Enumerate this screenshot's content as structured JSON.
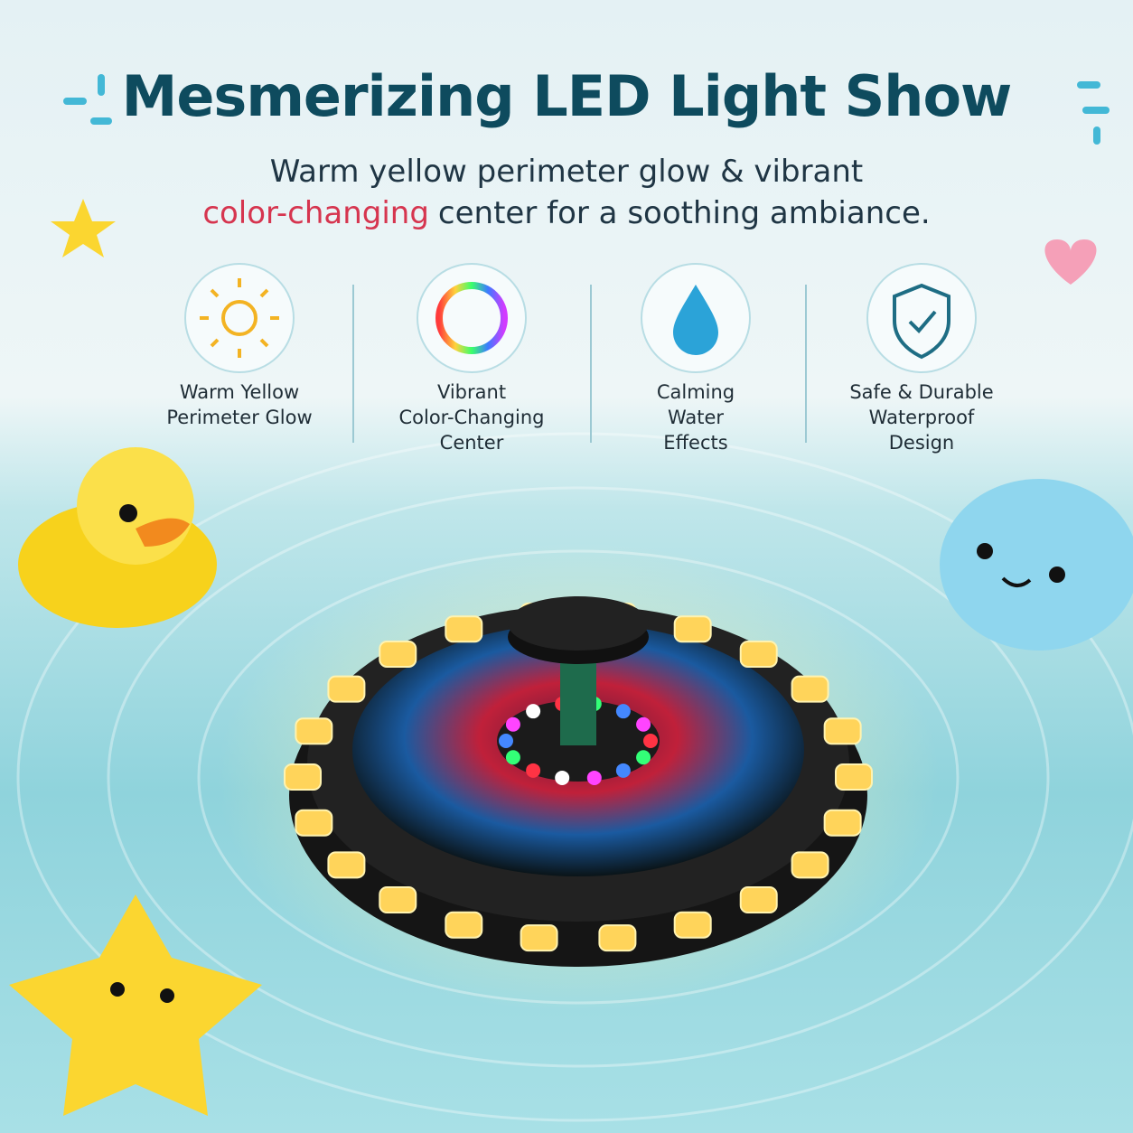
{
  "header": {
    "title": "Mesmerizing LED Light Show",
    "subtitle": {
      "line1": "Warm yellow perimeter glow & vibrant",
      "highlight": "color-changing",
      "line2": "center for a soothing ambiance."
    }
  },
  "features": [
    {
      "lines": [
        "Warm Yellow",
        "Perimeter Glow"
      ]
    },
    {
      "lines": [
        "Vibrant",
        "Color-Changing",
        "Center"
      ]
    },
    {
      "lines": [
        "Calming",
        "Water",
        "Effects"
      ]
    },
    {
      "lines": [
        "Safe & Durable",
        "Waterproof",
        "Design"
      ]
    }
  ]
}
